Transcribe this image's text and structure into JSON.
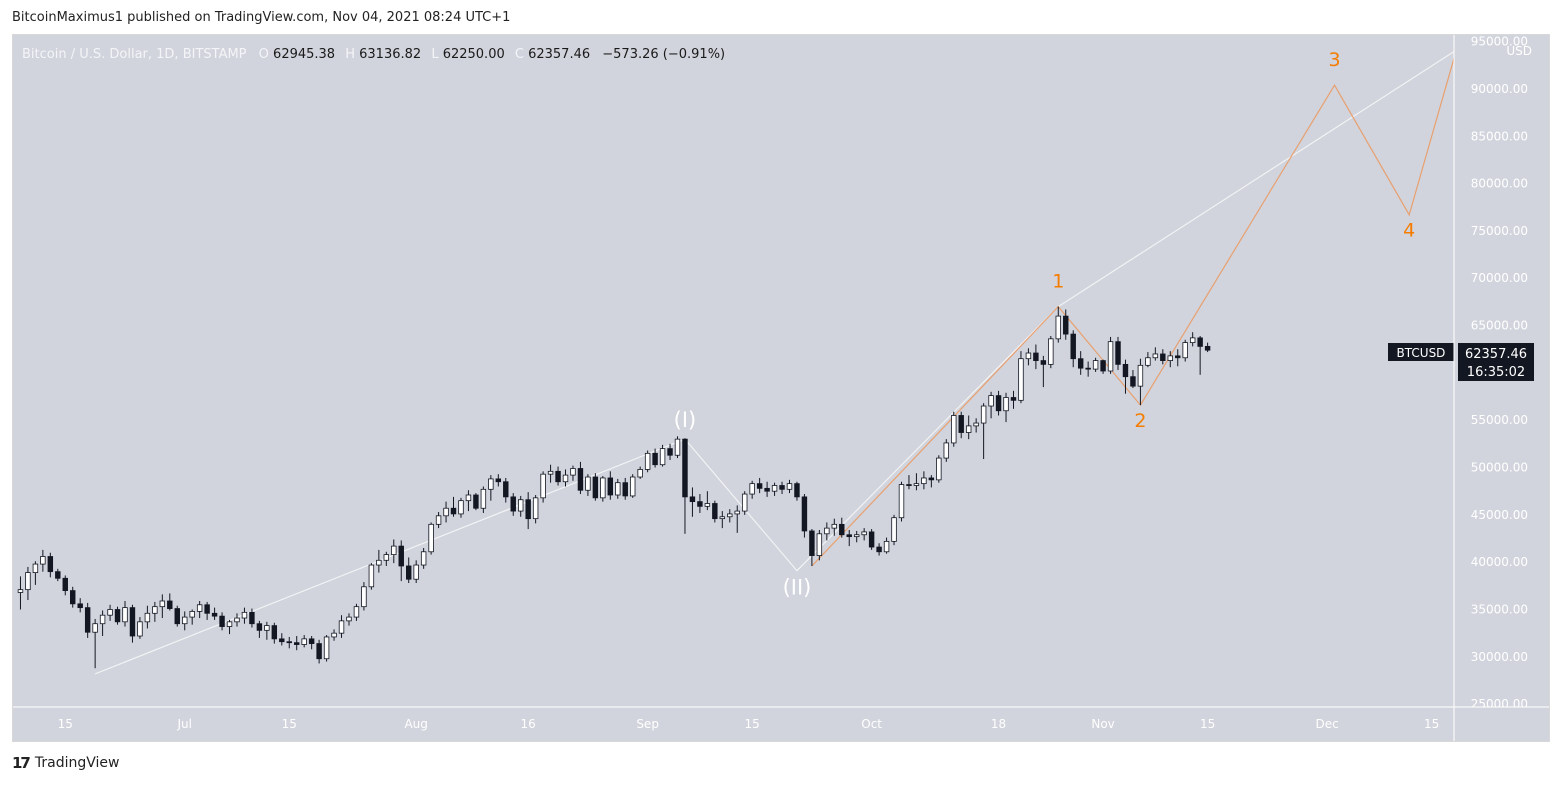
{
  "header": {
    "published_by": "BitcoinMaximus1 published on TradingView.com, Nov 04, 2021 08:24 UTC+1"
  },
  "legend": {
    "symbol_desc": "Bitcoin / U.S. Dollar, 1D, BITSTAMP",
    "open_label": "O",
    "open": "62945.38",
    "high_label": "H",
    "high": "63136.82",
    "low_label": "L",
    "low": "62250.00",
    "close_label": "C",
    "close": "62357.46",
    "change": "−573.26 (−0.91%)"
  },
  "price_badge": {
    "symbol": "BTCUSD",
    "price": "62357.46",
    "countdown": "16:35:02"
  },
  "axis_currency": "USD",
  "footer": {
    "brand": "TradingView"
  },
  "colors": {
    "plot_bg": "#d1d4dc",
    "candle_up": "#ffffff",
    "candle_down": "#131722",
    "wave_white": "#f2f3f5",
    "wave_orange": "#e8a070",
    "label_orange": "#f57c00",
    "label_white": "#ffffff",
    "badge_bg": "#131722"
  },
  "chart_data": {
    "type": "candlestick",
    "title": "",
    "symbol": "BTCUSD",
    "timeframe": "1D",
    "x_start_date": "2021-06-09",
    "yticks": [
      25000,
      30000,
      35000,
      40000,
      45000,
      50000,
      55000,
      60000,
      65000,
      70000,
      75000,
      80000,
      85000,
      90000,
      95000
    ],
    "ytick_labels": [
      "25000.00",
      "30000.00",
      "35000.00",
      "40000.00",
      "45000.00",
      "50000.00",
      "55000.00",
      "60000.00",
      "65000.00",
      "70000.00",
      "75000.00",
      "80000.00",
      "85000.00",
      "90000.00",
      "95000.00"
    ],
    "ylim": [
      24700,
      95700
    ],
    "xticks": [
      {
        "label": "15",
        "day": 6
      },
      {
        "label": "Jul",
        "day": 22
      },
      {
        "label": "15",
        "day": 36
      },
      {
        "label": "Aug",
        "day": 53
      },
      {
        "label": "16",
        "day": 68
      },
      {
        "label": "Sep",
        "day": 84
      },
      {
        "label": "15",
        "day": 98
      },
      {
        "label": "Oct",
        "day": 114
      },
      {
        "label": "18",
        "day": 131
      },
      {
        "label": "Nov",
        "day": 145
      },
      {
        "label": "15",
        "day": 159
      },
      {
        "label": "Dec",
        "day": 175
      },
      {
        "label": "15",
        "day": 189
      }
    ],
    "xlim": [
      -1,
      192
    ],
    "candles": [
      [
        0,
        36800,
        38500,
        35000,
        37100
      ],
      [
        1,
        37100,
        39500,
        36000,
        38900
      ],
      [
        2,
        38900,
        40100,
        37600,
        39800
      ],
      [
        3,
        39800,
        41300,
        39000,
        40600
      ],
      [
        4,
        40600,
        41000,
        38400,
        39000
      ],
      [
        5,
        39000,
        39300,
        38000,
        38300
      ],
      [
        6,
        38300,
        38600,
        36500,
        37000
      ],
      [
        7,
        37000,
        37400,
        35200,
        35600
      ],
      [
        8,
        35600,
        36200,
        34700,
        35200
      ],
      [
        9,
        35200,
        35700,
        32000,
        32600
      ],
      [
        10,
        32600,
        34000,
        28800,
        33500
      ],
      [
        11,
        33500,
        34900,
        32200,
        34400
      ],
      [
        12,
        34400,
        35500,
        33800,
        35000
      ],
      [
        13,
        35000,
        35300,
        33400,
        33700
      ],
      [
        14,
        33700,
        35900,
        33200,
        35200
      ],
      [
        15,
        35200,
        35500,
        31500,
        32200
      ],
      [
        16,
        32200,
        34200,
        31900,
        33700
      ],
      [
        17,
        33700,
        35400,
        33000,
        34600
      ],
      [
        18,
        34600,
        35800,
        33700,
        35300
      ],
      [
        19,
        35300,
        36600,
        34100,
        35900
      ],
      [
        20,
        35900,
        36700,
        34900,
        35100
      ],
      [
        21,
        35100,
        35400,
        33200,
        33500
      ],
      [
        22,
        33500,
        34800,
        32800,
        34200
      ],
      [
        23,
        34200,
        35000,
        33400,
        34800
      ],
      [
        24,
        34800,
        35900,
        34100,
        35500
      ],
      [
        25,
        35500,
        35800,
        33900,
        34600
      ],
      [
        26,
        34600,
        35200,
        33900,
        34300
      ],
      [
        27,
        34300,
        34700,
        32800,
        33200
      ],
      [
        28,
        33200,
        33900,
        32400,
        33700
      ],
      [
        29,
        33700,
        34600,
        33200,
        34100
      ],
      [
        30,
        34100,
        35200,
        33500,
        34700
      ],
      [
        31,
        34700,
        35100,
        33100,
        33500
      ],
      [
        32,
        33500,
        33800,
        32000,
        32800
      ],
      [
        33,
        32800,
        33700,
        31800,
        33300
      ],
      [
        34,
        33300,
        33600,
        31400,
        31900
      ],
      [
        35,
        31900,
        32500,
        31200,
        31600
      ],
      [
        36,
        31600,
        32100,
        30900,
        31500
      ],
      [
        37,
        31500,
        32200,
        30700,
        31300
      ],
      [
        38,
        31300,
        32300,
        31000,
        31900
      ],
      [
        39,
        31900,
        32200,
        30800,
        31400
      ],
      [
        40,
        31400,
        31800,
        29300,
        29800
      ],
      [
        41,
        29800,
        32300,
        29500,
        32100
      ],
      [
        42,
        32100,
        32900,
        31700,
        32500
      ],
      [
        43,
        32500,
        34400,
        32000,
        33800
      ],
      [
        44,
        33800,
        34600,
        33300,
        34200
      ],
      [
        45,
        34200,
        35600,
        33800,
        35300
      ],
      [
        46,
        35300,
        37900,
        34900,
        37400
      ],
      [
        47,
        37400,
        39900,
        37100,
        39700
      ],
      [
        48,
        39700,
        41300,
        38900,
        40200
      ],
      [
        49,
        40200,
        41100,
        39600,
        40800
      ],
      [
        50,
        40800,
        42400,
        39900,
        41700
      ],
      [
        51,
        41700,
        42300,
        38000,
        39600
      ],
      [
        52,
        39600,
        40500,
        37800,
        38200
      ],
      [
        53,
        38200,
        40200,
        37800,
        39700
      ],
      [
        54,
        39700,
        41500,
        39300,
        41100
      ],
      [
        55,
        41100,
        44200,
        40800,
        44000
      ],
      [
        56,
        44000,
        45300,
        43600,
        44900
      ],
      [
        57,
        44900,
        46400,
        44200,
        45700
      ],
      [
        58,
        45700,
        46900,
        44800,
        45100
      ],
      [
        59,
        45100,
        46800,
        44700,
        46500
      ],
      [
        60,
        46500,
        47600,
        45400,
        47100
      ],
      [
        61,
        47100,
        47300,
        45500,
        45700
      ],
      [
        62,
        45700,
        48000,
        45200,
        47700
      ],
      [
        63,
        47700,
        49200,
        46500,
        48800
      ],
      [
        64,
        48800,
        49300,
        48000,
        48500
      ],
      [
        65,
        48500,
        48900,
        46300,
        46900
      ],
      [
        66,
        46900,
        47300,
        44900,
        45400
      ],
      [
        67,
        45400,
        47000,
        44800,
        46600
      ],
      [
        68,
        46600,
        47400,
        43500,
        44600
      ],
      [
        69,
        44600,
        47100,
        44100,
        46800
      ],
      [
        70,
        46800,
        49600,
        46300,
        49300
      ],
      [
        71,
        49300,
        50300,
        48400,
        49600
      ],
      [
        72,
        49600,
        50100,
        48100,
        48500
      ],
      [
        73,
        48500,
        49800,
        48000,
        49200
      ],
      [
        74,
        49200,
        50200,
        48600,
        49900
      ],
      [
        75,
        49900,
        50600,
        47200,
        47600
      ],
      [
        76,
        47600,
        49300,
        47000,
        49000
      ],
      [
        77,
        49000,
        49400,
        46500,
        46800
      ],
      [
        78,
        46800,
        49100,
        46400,
        48900
      ],
      [
        79,
        48900,
        49600,
        46600,
        47100
      ],
      [
        80,
        47100,
        48800,
        46700,
        48400
      ],
      [
        81,
        48400,
        48900,
        46600,
        47000
      ],
      [
        82,
        47000,
        49300,
        46800,
        49000
      ],
      [
        83,
        49000,
        50100,
        48800,
        49800
      ],
      [
        84,
        49800,
        51800,
        49500,
        51500
      ],
      [
        85,
        51500,
        52000,
        50000,
        50300
      ],
      [
        86,
        50300,
        52400,
        50100,
        52000
      ],
      [
        87,
        52000,
        52500,
        50800,
        51300
      ],
      [
        88,
        51300,
        53300,
        51000,
        53000
      ],
      [
        89,
        53000,
        53100,
        43000,
        46900
      ],
      [
        90,
        46900,
        47900,
        44800,
        46400
      ],
      [
        91,
        46400,
        47200,
        45200,
        45900
      ],
      [
        92,
        45900,
        47500,
        45500,
        46200
      ],
      [
        93,
        46200,
        46500,
        44200,
        44600
      ],
      [
        94,
        44600,
        45400,
        43600,
        44800
      ],
      [
        95,
        44800,
        45600,
        44200,
        45100
      ],
      [
        96,
        45100,
        46000,
        43100,
        45400
      ],
      [
        97,
        45400,
        47500,
        45000,
        47200
      ],
      [
        98,
        47200,
        48600,
        46700,
        48300
      ],
      [
        99,
        48300,
        48900,
        47300,
        47800
      ],
      [
        100,
        47800,
        48500,
        46900,
        47500
      ],
      [
        101,
        47500,
        48400,
        47000,
        48100
      ],
      [
        102,
        48100,
        48500,
        47200,
        47700
      ],
      [
        103,
        47700,
        48700,
        47300,
        48300
      ],
      [
        104,
        48300,
        48500,
        46500,
        46900
      ],
      [
        105,
        46900,
        47200,
        42600,
        43300
      ],
      [
        106,
        43300,
        43500,
        39600,
        40700
      ],
      [
        107,
        40700,
        43400,
        40200,
        43000
      ],
      [
        108,
        43000,
        44200,
        42300,
        43600
      ],
      [
        109,
        43600,
        44600,
        42800,
        44000
      ],
      [
        110,
        44000,
        44700,
        42600,
        42900
      ],
      [
        111,
        42900,
        43400,
        41700,
        42700
      ],
      [
        112,
        42700,
        43300,
        42100,
        42900
      ],
      [
        113,
        42900,
        43600,
        42300,
        43200
      ],
      [
        114,
        43200,
        43500,
        41300,
        41600
      ],
      [
        115,
        41600,
        42000,
        40700,
        41100
      ],
      [
        116,
        41100,
        42600,
        40900,
        42200
      ],
      [
        117,
        42200,
        45000,
        41800,
        44700
      ],
      [
        118,
        44700,
        48500,
        44300,
        48200
      ],
      [
        119,
        48200,
        49200,
        47700,
        48100
      ],
      [
        120,
        48100,
        49400,
        47600,
        48300
      ],
      [
        121,
        48300,
        49600,
        47700,
        48900
      ],
      [
        122,
        48900,
        49200,
        47900,
        48700
      ],
      [
        123,
        48700,
        51300,
        48400,
        51000
      ],
      [
        124,
        51000,
        53000,
        50600,
        52600
      ],
      [
        125,
        52600,
        55900,
        52200,
        55500
      ],
      [
        126,
        55500,
        55900,
        53100,
        53700
      ],
      [
        127,
        53700,
        55500,
        53000,
        54400
      ],
      [
        128,
        54400,
        55200,
        53700,
        54700
      ],
      [
        129,
        54700,
        56800,
        50900,
        56500
      ],
      [
        130,
        56500,
        58000,
        55200,
        57600
      ],
      [
        131,
        57600,
        58100,
        55500,
        56000
      ],
      [
        132,
        56000,
        57900,
        54800,
        57400
      ],
      [
        133,
        57400,
        58100,
        56200,
        57100
      ],
      [
        134,
        57100,
        62300,
        56800,
        61500
      ],
      [
        135,
        61500,
        62600,
        60800,
        62100
      ],
      [
        136,
        62100,
        63000,
        60400,
        61300
      ],
      [
        137,
        61300,
        61800,
        58500,
        60900
      ],
      [
        138,
        60900,
        63900,
        60500,
        63600
      ],
      [
        139,
        63600,
        67000,
        63200,
        66000
      ],
      [
        140,
        66000,
        66700,
        63500,
        64100
      ],
      [
        141,
        64100,
        64500,
        60600,
        61500
      ],
      [
        142,
        61500,
        62300,
        59800,
        60500
      ],
      [
        143,
        60500,
        61200,
        59600,
        60400
      ],
      [
        144,
        60400,
        61600,
        60100,
        61300
      ],
      [
        145,
        61300,
        61400,
        59900,
        60200
      ],
      [
        146,
        60200,
        63800,
        59900,
        63300
      ],
      [
        147,
        63300,
        63800,
        60300,
        60900
      ],
      [
        148,
        60900,
        61400,
        57800,
        59600
      ],
      [
        149,
        59600,
        60300,
        58400,
        58600
      ],
      [
        150,
        58600,
        61500,
        56600,
        60800
      ],
      [
        151,
        60800,
        62200,
        60600,
        61600
      ],
      [
        152,
        61600,
        62700,
        61300,
        62000
      ],
      [
        153,
        62000,
        62500,
        60900,
        61300
      ],
      [
        154,
        61300,
        62300,
        60600,
        61800
      ],
      [
        155,
        61800,
        62500,
        60700,
        61600
      ],
      [
        156,
        61600,
        63500,
        61200,
        63200
      ],
      [
        157,
        63200,
        64300,
        62800,
        63700
      ],
      [
        158,
        63700,
        63900,
        59800,
        62800
      ],
      [
        159,
        62800,
        63200,
        62200,
        62400
      ]
    ],
    "waves": [
      {
        "label": "",
        "color": "white",
        "points": [
          [
            10,
            28200
          ],
          [
            89,
            53000
          ],
          [
            104,
            39100
          ],
          [
            139,
            67000
          ]
        ]
      },
      {
        "label": "",
        "color": "white",
        "points": [
          [
            139,
            67000
          ],
          [
            198,
            97000
          ]
        ]
      },
      {
        "label": "",
        "color": "orange",
        "points": [
          [
            106,
            39600
          ],
          [
            139,
            67000
          ],
          [
            150,
            56600
          ],
          [
            176,
            90400
          ],
          [
            186,
            76700
          ],
          [
            193,
            96000
          ]
        ]
      }
    ],
    "wave_labels": [
      {
        "text": "(I)",
        "x": 89,
        "y": 54300,
        "color": "white"
      },
      {
        "text": "(II)",
        "x": 104,
        "y": 36600,
        "color": "white"
      },
      {
        "text": "1",
        "x": 139,
        "y": 69000,
        "color": "orange"
      },
      {
        "text": "2",
        "x": 150,
        "y": 54300,
        "color": "orange"
      },
      {
        "text": "3",
        "x": 176,
        "y": 92400,
        "color": "orange"
      },
      {
        "text": "4",
        "x": 186,
        "y": 74400,
        "color": "orange"
      }
    ]
  }
}
